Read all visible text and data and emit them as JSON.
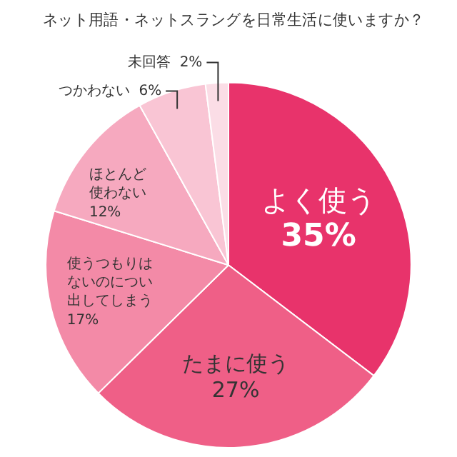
{
  "chart_data": {
    "type": "pie",
    "title": "ネット用語・ネットスラングを日常生活に使いますか？",
    "categories": [
      "よく使う",
      "たまに使う",
      "使うつもりはないのについ出してしまう",
      "ほとんど使わない",
      "つかわない",
      "未回答"
    ],
    "value_labels": [
      "35%",
      "27%",
      "17%",
      "12%",
      "6%",
      "2%"
    ],
    "values": [
      35,
      27,
      17,
      12,
      6,
      2
    ],
    "colors": [
      "#e8336b",
      "#ef5f87",
      "#f38aa7",
      "#f6a9bf",
      "#f9c5d4",
      "#fbdde6"
    ]
  }
}
